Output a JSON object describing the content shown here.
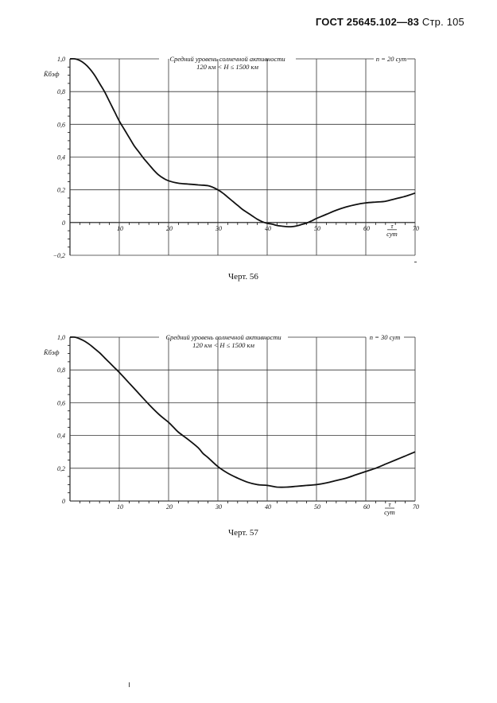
{
  "header": {
    "doc": "ГОСТ 25645.102—83",
    "page": "Стр. 105"
  },
  "captions": [
    "Черт. 56",
    "Черт. 57"
  ],
  "chart_data": [
    {
      "type": "line",
      "title": "Средний уровень солнечной активности",
      "subtitle": "120 км < H ≤ 1500 км",
      "annotation": "n = 20 сут",
      "ylabel": "K̄бэф",
      "xlabel_num": "τ",
      "xlabel_den": "сут",
      "xlim": [
        0,
        70
      ],
      "ylim": [
        -0.2,
        1.0
      ],
      "grid": true,
      "xticks": [
        10,
        20,
        30,
        40,
        50,
        60,
        70
      ],
      "xtick_labels": [
        "10",
        "20",
        "30",
        "40",
        "50",
        "60",
        "70"
      ],
      "yticks": [
        1.0,
        0.8,
        0.6,
        0.4,
        0.2,
        0,
        -0.2
      ],
      "ytick_labels": [
        "1,0",
        "0,8",
        "0,6",
        "0,4",
        "0,2",
        "0",
        "−0,2"
      ],
      "series": [
        {
          "x": [
            0,
            1,
            2,
            3,
            4,
            5,
            6,
            7,
            8,
            9,
            10,
            11,
            12,
            13,
            14,
            15,
            16,
            17,
            18,
            19,
            20,
            22,
            24,
            26,
            28,
            29,
            30,
            31,
            32,
            33,
            34,
            35,
            36,
            37,
            38,
            39,
            40,
            41,
            42,
            43,
            44,
            45,
            46,
            47,
            48,
            49,
            50,
            52,
            54,
            56,
            58,
            60,
            62,
            64,
            66,
            68,
            70
          ],
          "y": [
            1.0,
            1.0,
            0.99,
            0.97,
            0.94,
            0.9,
            0.85,
            0.8,
            0.74,
            0.68,
            0.62,
            0.57,
            0.52,
            0.47,
            0.43,
            0.39,
            0.355,
            0.32,
            0.29,
            0.27,
            0.255,
            0.24,
            0.235,
            0.23,
            0.225,
            0.215,
            0.2,
            0.18,
            0.155,
            0.13,
            0.105,
            0.08,
            0.06,
            0.04,
            0.02,
            0.005,
            -0.005,
            -0.01,
            -0.018,
            -0.022,
            -0.025,
            -0.025,
            -0.02,
            -0.012,
            -0.003,
            0.01,
            0.025,
            0.05,
            0.075,
            0.095,
            0.11,
            0.12,
            0.125,
            0.13,
            0.145,
            0.16,
            0.18
          ]
        }
      ]
    },
    {
      "type": "line",
      "title": "Средний уровень солнечной активности",
      "subtitle": "120 км < H ≤ 1500 км",
      "annotation": "n = 30 сут",
      "ylabel": "K̄бэф",
      "xlabel_num": "τ",
      "xlabel_den": "сут",
      "xlim": [
        0,
        70
      ],
      "ylim": [
        0,
        1.0
      ],
      "grid": true,
      "xticks": [
        10,
        20,
        30,
        40,
        50,
        60,
        70
      ],
      "xtick_labels": [
        "10",
        "20",
        "30",
        "40",
        "50",
        "60",
        "70"
      ],
      "yticks": [
        1.0,
        0.8,
        0.6,
        0.4,
        0.2,
        0
      ],
      "ytick_labels": [
        "1,0",
        "0,8",
        "0,6",
        "0,4",
        "0,2",
        "0"
      ],
      "series": [
        {
          "x": [
            0,
            1,
            2,
            3,
            4,
            5,
            6,
            7,
            8,
            9,
            10,
            12,
            14,
            16,
            18,
            20,
            21,
            22,
            24,
            26,
            27,
            28,
            30,
            32,
            34,
            36,
            38,
            40,
            42,
            44,
            46,
            48,
            50,
            52,
            54,
            56,
            58,
            60,
            62,
            64,
            66,
            68,
            70
          ],
          "y": [
            1.0,
            1.0,
            0.99,
            0.975,
            0.955,
            0.93,
            0.905,
            0.875,
            0.845,
            0.815,
            0.785,
            0.72,
            0.655,
            0.59,
            0.53,
            0.48,
            0.45,
            0.42,
            0.375,
            0.325,
            0.29,
            0.265,
            0.21,
            0.17,
            0.14,
            0.115,
            0.1,
            0.095,
            0.085,
            0.085,
            0.09,
            0.095,
            0.1,
            0.11,
            0.125,
            0.14,
            0.16,
            0.18,
            0.2,
            0.225,
            0.25,
            0.275,
            0.3
          ]
        }
      ]
    }
  ]
}
